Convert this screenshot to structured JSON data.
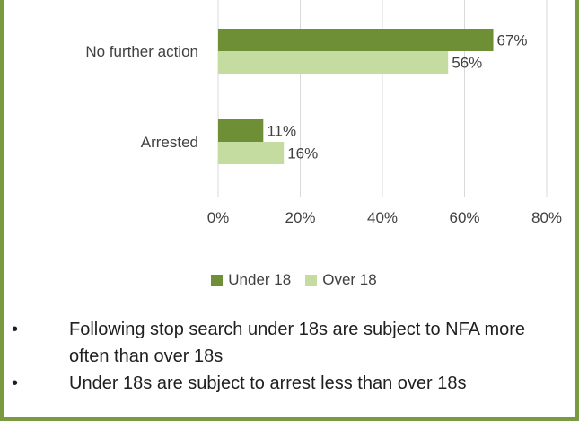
{
  "chart_data": {
    "type": "bar",
    "orientation": "horizontal",
    "categories": [
      "No further action",
      "Arrested"
    ],
    "series": [
      {
        "name": "Under 18",
        "values": [
          67,
          11
        ],
        "labels": [
          "67%",
          "11%"
        ],
        "color": "#6e8f35"
      },
      {
        "name": "Over 18",
        "values": [
          56,
          16
        ],
        "labels": [
          "56%",
          "16%"
        ],
        "color": "#c5dca0"
      }
    ],
    "xlim": [
      0,
      80
    ],
    "xticks": [
      0,
      20,
      40,
      60,
      80
    ],
    "xtick_labels": [
      "0%",
      "20%",
      "40%",
      "60%",
      "80%"
    ],
    "grid": true,
    "legend_position": "bottom"
  },
  "notes": [
    "Following stop search under 18s are subject to NFA more often than over 18s",
    "Under 18s are subject to arrest less than over 18s"
  ],
  "bullet": "•"
}
